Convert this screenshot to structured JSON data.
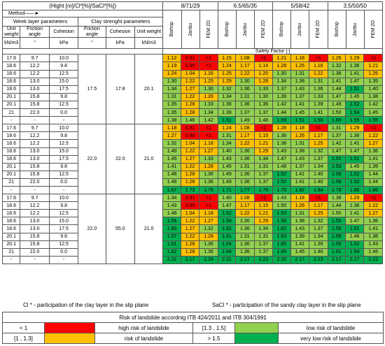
{
  "header": {
    "title": "(Hight [m]/Cl*[%]/SaCl*[%])",
    "method": "Method",
    "configs": [
      "8/71/29",
      "6.5/65/35",
      "5/58/42",
      "3.5/50/50"
    ],
    "methods": [
      "Bishop",
      "Janbu",
      "FEM 2D"
    ],
    "weak_layer": "Week layer parameters",
    "clay_strength": "Clay strenght parameters",
    "col_unit_weight": "Unit weight",
    "col_friction": "Friction angle",
    "col_cohesion": "Cohesion",
    "unit_weight_unit": "kN/m3",
    "friction_unit": "°",
    "cohesion_unit": "kPa",
    "safety_factor": "Safety Factor [-]"
  },
  "colors": {
    "red": "#ff0000",
    "orange": "#ffc000",
    "light_green": "#92d050",
    "green": "#00b050"
  },
  "weak_rows": [
    [
      "17.6",
      "9.7",
      "10.0"
    ],
    [
      "18.6",
      "12.2",
      "9.8"
    ],
    [
      "18.6",
      "12.2",
      "12.5"
    ],
    [
      "18.6",
      "13.0",
      "15.0"
    ],
    [
      "18.6",
      "13.0",
      "17.5"
    ],
    [
      "20.1",
      "15.8",
      "9.8"
    ],
    [
      "20.1",
      "15.8",
      "12.5"
    ],
    [
      "21",
      "22.0",
      "0.0"
    ],
    [
      "-",
      "-",
      "-"
    ]
  ],
  "groups": [
    {
      "clay": [
        "17.5",
        "17.8",
        "20.1"
      ],
      "rows": [
        [
          "1.12",
          "0.91",
          "<1",
          "1.15",
          "1.08",
          "<1",
          "1.21",
          "1.18",
          "<1",
          "1.26",
          "1.29",
          "<1"
        ],
        [
          "1.19",
          "0.99",
          "<1",
          "1.24",
          "1.17",
          "1.14",
          "1.28",
          "1.26",
          "1.16",
          "1.32",
          "1.36",
          "1.21"
        ],
        [
          "1.24",
          "1.04",
          "1.16",
          "1.25",
          "1.22",
          "1.20",
          "1.30",
          "1.31",
          "1.22",
          "1.36",
          "1.41",
          "1.26"
        ],
        [
          "1.30",
          "1.22",
          "1.25",
          "1.29",
          "1.30",
          "1.28",
          "1.34",
          "1.38",
          "1.31",
          "1.41",
          "1.47",
          "1.35"
        ],
        [
          "1.34",
          "1.27",
          "1.30",
          "1.32",
          "1.36",
          "1.33",
          "1.37",
          "1.43",
          "1.36",
          "1.44",
          "1.51",
          "1.40"
        ],
        [
          "1.31",
          "1.22",
          "1.26",
          "1.34",
          "1.31",
          "1.30",
          "1.39",
          "1.37",
          "1.33",
          "1.47",
          "1.45",
          "1.38"
        ],
        [
          "1.35",
          "1.28",
          "1.33",
          "1.38",
          "1.36",
          "1.36",
          "1.42",
          "1.41",
          "1.39",
          "1.49",
          "1.52",
          "1.42"
        ],
        [
          "1.35",
          "1.28",
          "1.34",
          "1.39",
          "1.37",
          "1.37",
          "1.44",
          "1.45",
          "1.41",
          "1.50",
          "1.54",
          "1.45"
        ],
        [
          "1.38",
          "1.46",
          "1.42",
          "1.51",
          "1.49",
          "1.48",
          "1.59",
          "1.51",
          "1.55",
          "1.65",
          "1.55",
          "1.55"
        ]
      ]
    },
    {
      "clay": [
        "22.0",
        "22.0",
        "21.0"
      ],
      "rows": [
        [
          "1.18",
          "0.91",
          "<1",
          "1.24",
          "1.08",
          "<1",
          "1.28",
          "1.18",
          "<1",
          "1.31",
          "1.29",
          "<1"
        ],
        [
          "1.27",
          "0.99",
          "<1",
          "1.31",
          "1.17",
          "1.15",
          "1.36",
          "1.26",
          "1.17",
          "1.37",
          "1.36",
          "1.22"
        ],
        [
          "1.32",
          "1.04",
          "1.18",
          "1.34",
          "1.22",
          "1.21",
          "1.38",
          "1.31",
          "1.25",
          "1.42",
          "1.41",
          "1.27"
        ],
        [
          "1.40",
          "1.22",
          "1.27",
          "1.40",
          "1.30",
          "1.29",
          "1.43",
          "1.38",
          "1.32",
          "1.47",
          "1.47",
          "1.36"
        ],
        [
          "1.45",
          "1.27",
          "1.33",
          "1.43",
          "1.36",
          "1.34",
          "1.47",
          "1.43",
          "1.37",
          "1.51",
          "1.51",
          "1.41"
        ],
        [
          "1.41",
          "1.22",
          "1.28",
          "1.45",
          "1.31",
          "1.31",
          "1.48",
          "1.37",
          "1.34",
          "1.53",
          "1.45",
          "1.39"
        ],
        [
          "1.46",
          "1.28",
          "1.36",
          "1.49",
          "1.36",
          "1.37",
          "1.52",
          "1.41",
          "1.40",
          "1.56",
          "1.52",
          "1.44"
        ],
        [
          "1.46",
          "1.28",
          "1.36",
          "1.49",
          "1.36",
          "1.37",
          "1.52",
          "1.41",
          "1.40",
          "1.56",
          "1.52",
          "1.44"
        ],
        [
          "1.67",
          "1.73",
          "1.75",
          "1.71",
          "1.77",
          "1.79",
          "1.75",
          "1.82",
          "1.84",
          "1.79",
          "1.86",
          "1.86"
        ]
      ]
    },
    {
      "clay": [
        "22.0",
        "55.0",
        "21.0"
      ],
      "rows": [
        [
          "1.34",
          "0.91",
          "<1",
          "1.40",
          "1.08",
          "<1",
          "1.43",
          "1.18",
          "<1",
          "1.38",
          "1.29",
          "<1"
        ],
        [
          "1.43",
          "0.99",
          "<1",
          "1.47",
          "1.17",
          "1.15",
          "1.50",
          "1.26",
          "1.17",
          "1.44",
          "1.36",
          "1.22"
        ],
        [
          "1.48",
          "1.04",
          "1.18",
          "1.52",
          "1.22",
          "1.21",
          "1.53",
          "1.31",
          "1.25",
          "1.50",
          "1.41",
          "1.27"
        ],
        [
          "1.56",
          "1.22",
          "1.27",
          "1.58",
          "1.30",
          "1.29",
          "1.58",
          "1.38",
          "1.32",
          "1.55",
          "1.47",
          "1.36"
        ],
        [
          "1.60",
          "1.27",
          "1.32",
          "1.62",
          "1.36",
          "1.34",
          "1.62",
          "1.43",
          "1.37",
          "1.58",
          "1.51",
          "1.41"
        ],
        [
          "1.57",
          "1.22",
          "1.28",
          "1.61",
          "1.31",
          "1.31",
          "1.63",
          "1.39",
          "1.34",
          "1.58",
          "1.48",
          "1.38"
        ],
        [
          "1.61",
          "1.28",
          "1.36",
          "1.64",
          "1.36",
          "1.37",
          "1.65",
          "1.41",
          "1.39",
          "1.59",
          "1.52",
          "1.43"
        ],
        [
          "1.62",
          "1.28",
          "1.36",
          "1.64",
          "1.36",
          "1.37",
          "1.65",
          "1.45",
          "1.40",
          "1.61",
          "1.54",
          "1.46"
        ],
        [
          "2.22",
          "2.17",
          "2.24",
          "2.21",
          "2.17",
          "2.23",
          "2.20",
          "2.17",
          "2.23",
          "2.17",
          "2.17",
          "2.22"
        ]
      ]
    }
  ],
  "notes": {
    "cl": "Cl * - participation of the clay layer in the slip plane",
    "sacl": "SaCl * - participation of the sandy clay layer in the slip plane"
  },
  "legend": {
    "title": "Risk of landslide accordnig ITB 424/2011 and ITB 304/1991",
    "items": [
      {
        "range": "< 1",
        "label": "high risk of landslide"
      },
      {
        "range": "[1.3 , 1.5]",
        "label": "low risk of landslide"
      },
      {
        "range": "[1 , 1.3]",
        "label": "risk of landslide"
      },
      {
        "range": "> 1.5",
        "label": "very low risk of landslide"
      }
    ]
  }
}
